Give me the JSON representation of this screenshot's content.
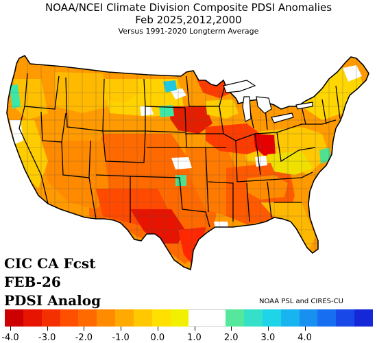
{
  "map_title": {
    "line1": "NOAA/NCEI Climate Division Composite PDSI Anomalies",
    "line2": "Feb  2025,2012,2000",
    "line3": "Versus 1991-2020 Longterm Average"
  },
  "forecast_label": {
    "line1": "CIC CA Fcst",
    "line2": "FEB-26",
    "line3": "PDSI Analog"
  },
  "credit": "NOAA PSL and CIRES-CU",
  "legend": {
    "tick_labels": [
      "-4.0",
      "-3.0",
      "-2.0",
      "-1.0",
      "0.0",
      "1.0",
      "2.0",
      "3.0",
      "4.0"
    ],
    "swatches": [
      "#cc0000",
      "#e61400",
      "#f53000",
      "#ff5000",
      "#ff6a00",
      "#ff8c00",
      "#ffaa00",
      "#ffc800",
      "#ffe000",
      "#f0f000",
      "#ffffff",
      "#ffffff",
      "#55e89c",
      "#35e0c8",
      "#1ed4e8",
      "#18b4f0",
      "#1890f0",
      "#186ef0",
      "#1848e8",
      "#1428d8"
    ]
  },
  "colors": {
    "extreme_dry": "#e60000",
    "severe_dry": "#ff5a00",
    "moderate_dry": "#ff9600",
    "mild_dry": "#ffc800",
    "slight_dry": "#eeee00",
    "near_normal": "#ffffff",
    "wet": "#3ce8a8",
    "very_wet": "#1ec8e0",
    "state_border": "#000000"
  }
}
